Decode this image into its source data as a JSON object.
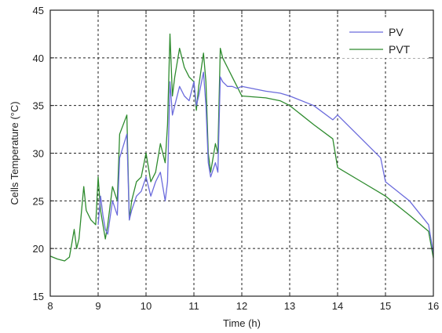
{
  "chart_data": {
    "type": "line",
    "title": "",
    "xlabel": "Time (h)",
    "ylabel": "Cells Temperature (°C)",
    "xlim": [
      8,
      16
    ],
    "ylim": [
      15,
      45
    ],
    "xticks": [
      8,
      9,
      10,
      11,
      12,
      13,
      14,
      15,
      16
    ],
    "yticks": [
      15,
      20,
      25,
      30,
      35,
      40,
      45
    ],
    "grid": true,
    "legend_position": "top-right",
    "series": [
      {
        "name": "PV",
        "color": "#6b6bdc",
        "x": [
          9.0,
          9.05,
          9.1,
          9.15,
          9.2,
          9.3,
          9.4,
          9.45,
          9.6,
          9.65,
          9.7,
          9.8,
          9.9,
          10.0,
          10.1,
          10.2,
          10.3,
          10.4,
          10.45,
          10.5,
          10.55,
          10.6,
          10.7,
          10.8,
          10.9,
          11.0,
          11.05,
          11.1,
          11.2,
          11.25,
          11.3,
          11.35,
          11.45,
          11.5,
          11.55,
          11.6,
          11.7,
          11.8,
          11.9,
          12.0,
          12.5,
          12.8,
          13.0,
          13.5,
          13.9,
          14.0,
          14.5,
          14.9,
          15.0,
          15.5,
          15.9,
          16.0
        ],
        "y": [
          22.5,
          25.5,
          23.5,
          22.0,
          21.5,
          25.0,
          23.5,
          29.5,
          32.0,
          23.0,
          24.0,
          25.5,
          26.0,
          27.5,
          25.5,
          27.0,
          28.0,
          25.0,
          27.0,
          37.5,
          34.0,
          35.0,
          37.0,
          36.0,
          35.5,
          37.5,
          35.0,
          36.0,
          38.5,
          35.0,
          29.0,
          27.5,
          29.0,
          28.0,
          38.0,
          37.5,
          37.0,
          37.0,
          36.8,
          37.0,
          36.5,
          36.3,
          36.0,
          35.0,
          33.5,
          34.0,
          31.5,
          29.5,
          27.0,
          25.0,
          22.5,
          19.5
        ]
      },
      {
        "name": "PVT",
        "color": "#2e8b2e",
        "x": [
          8.0,
          8.15,
          8.3,
          8.4,
          8.45,
          8.5,
          8.55,
          8.6,
          8.7,
          8.75,
          8.85,
          8.95,
          9.0,
          9.05,
          9.1,
          9.15,
          9.2,
          9.3,
          9.4,
          9.45,
          9.6,
          9.65,
          9.7,
          9.8,
          9.9,
          10.0,
          10.1,
          10.2,
          10.3,
          10.4,
          10.45,
          10.5,
          10.55,
          10.6,
          10.7,
          10.8,
          10.9,
          11.0,
          11.05,
          11.1,
          11.2,
          11.25,
          11.3,
          11.35,
          11.45,
          11.5,
          11.55,
          11.6,
          11.7,
          11.8,
          11.9,
          12.0,
          12.5,
          12.8,
          13.0,
          13.5,
          13.9,
          14.0,
          14.5,
          14.9,
          15.0,
          15.5,
          15.9,
          16.0
        ],
        "y": [
          19.2,
          18.9,
          18.7,
          19.1,
          20.5,
          22.0,
          20.0,
          21.0,
          26.5,
          24.0,
          23.0,
          22.5,
          27.5,
          24.0,
          22.5,
          21.0,
          22.5,
          26.5,
          25.0,
          32.0,
          34.0,
          23.0,
          25.0,
          27.0,
          27.5,
          30.0,
          27.0,
          28.0,
          31.0,
          29.0,
          33.0,
          42.5,
          36.0,
          38.0,
          41.0,
          39.0,
          38.0,
          37.5,
          34.5,
          37.0,
          40.5,
          37.5,
          30.0,
          28.0,
          31.0,
          30.0,
          41.0,
          40.0,
          39.0,
          38.0,
          37.0,
          36.0,
          35.8,
          35.5,
          35.0,
          33.0,
          31.5,
          28.5,
          27.0,
          25.8,
          25.5,
          23.5,
          21.8,
          19.0
        ]
      }
    ]
  }
}
